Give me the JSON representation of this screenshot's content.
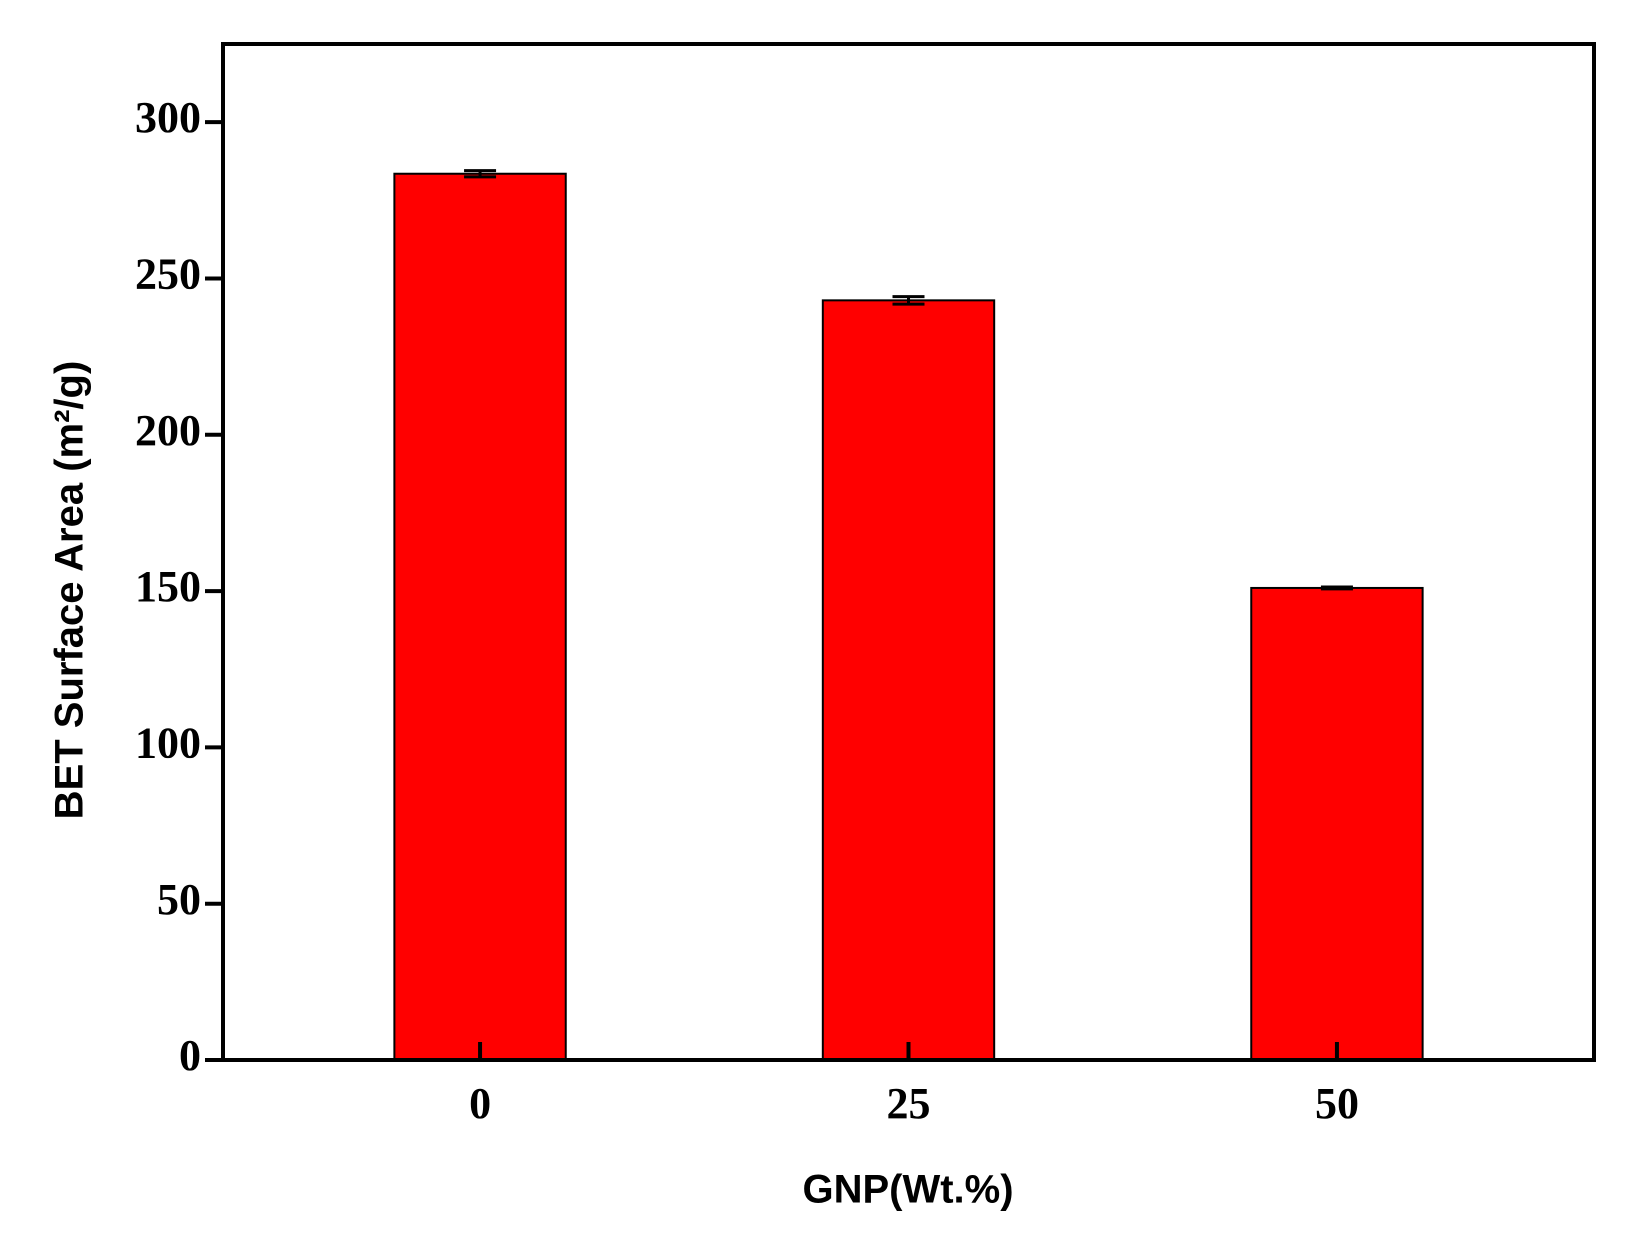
{
  "chart_data": {
    "type": "bar",
    "x_label": "GNP(Wt.%)",
    "y_label": "BET Surface Area (m²/g)",
    "x": [
      0,
      25,
      50
    ],
    "values": [
      283.5,
      243,
      151
    ],
    "errors": [
      1,
      1.2,
      0.3
    ],
    "color": "#ff0000",
    "xlim": [
      -15,
      65
    ],
    "xticks": [
      0,
      25,
      50
    ],
    "ylim": [
      0,
      325
    ],
    "yticks": [
      0,
      50,
      100,
      150,
      200,
      250,
      300
    ],
    "bar_width": 10
  }
}
